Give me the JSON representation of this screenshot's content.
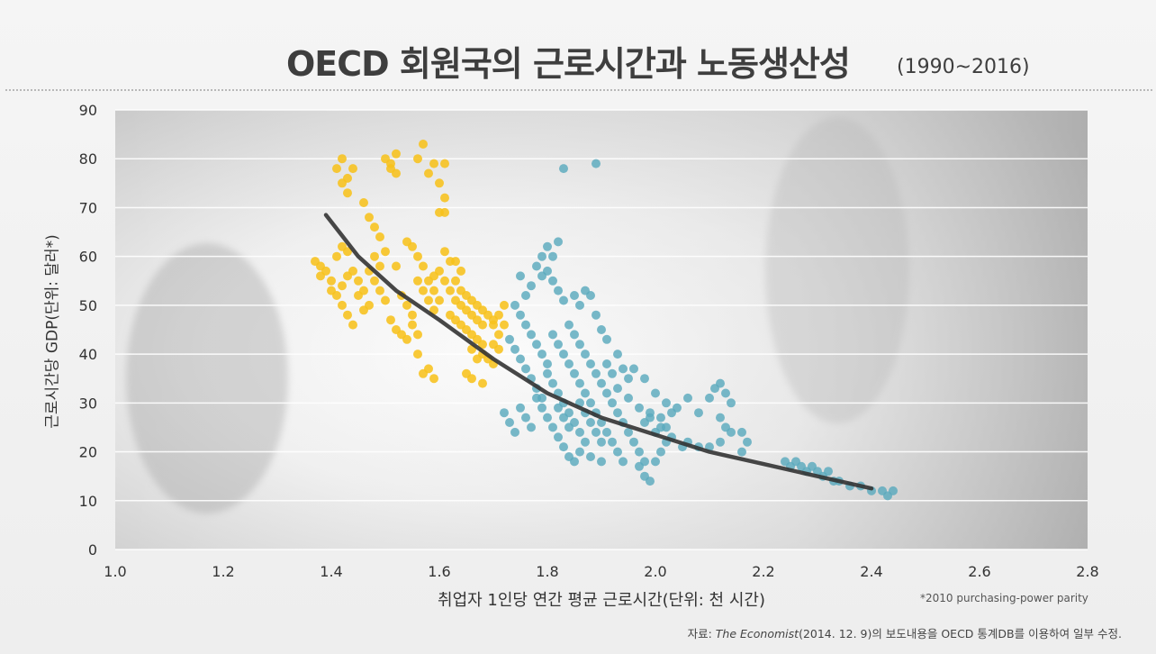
{
  "title": "OECD 회원국의 근로시간과 노동생산성",
  "subtitle": "(1990~2016)",
  "note": "*2010 purchasing-power parity",
  "source": {
    "prefix": "자료: ",
    "publication": "The Economist",
    "suffix": "(2014. 12. 9)의 보도내용을 OECD 통계DB를 이용하여 일부 수정."
  },
  "colors": {
    "low_hours_points": "#f7c21c",
    "high_hours_points": "#5aa9bd",
    "trend_line": "#333333",
    "grid": "#ffffff"
  },
  "chart_data": {
    "type": "scatter",
    "title": "OECD 회원국의 근로시간과 노동생산성",
    "subtitle": "(1990~2016)",
    "xlabel": "취업자 1인당 연간 평균 근로시간(단위: 천 시간)",
    "ylabel": "근로시간당 GDP(단위: 달러*)",
    "xlim": [
      1.0,
      2.8
    ],
    "ylim": [
      0,
      90
    ],
    "xticks": [
      "1.0",
      "1.2",
      "1.4",
      "1.6",
      "1.8",
      "2.0",
      "2.2",
      "2.4",
      "2.6",
      "2.8"
    ],
    "yticks": [
      "0",
      "10",
      "20",
      "30",
      "40",
      "50",
      "60",
      "70",
      "80",
      "90"
    ],
    "grid": true,
    "legend": "none",
    "series": [
      {
        "values": [
          [
            1.41,
            78
          ],
          [
            1.42,
            80
          ],
          [
            1.43,
            76
          ],
          [
            1.44,
            78
          ],
          [
            1.42,
            75
          ],
          [
            1.43,
            73
          ],
          [
            1.5,
            80
          ],
          [
            1.51,
            78
          ],
          [
            1.52,
            81
          ],
          [
            1.52,
            77
          ],
          [
            1.51,
            79
          ],
          [
            1.57,
            83
          ],
          [
            1.59,
            79
          ],
          [
            1.61,
            79
          ],
          [
            1.6,
            75
          ],
          [
            1.61,
            72
          ],
          [
            1.6,
            69
          ],
          [
            1.61,
            69
          ],
          [
            1.58,
            77
          ],
          [
            1.56,
            80
          ],
          [
            1.46,
            71
          ],
          [
            1.47,
            68
          ],
          [
            1.48,
            66
          ],
          [
            1.49,
            64
          ],
          [
            1.5,
            61
          ],
          [
            1.52,
            58
          ],
          [
            1.37,
            59
          ],
          [
            1.38,
            58
          ],
          [
            1.39,
            57
          ],
          [
            1.38,
            56
          ],
          [
            1.4,
            55
          ],
          [
            1.41,
            60
          ],
          [
            1.42,
            62
          ],
          [
            1.43,
            61
          ],
          [
            1.4,
            53
          ],
          [
            1.41,
            52
          ],
          [
            1.42,
            50
          ],
          [
            1.43,
            48
          ],
          [
            1.44,
            46
          ],
          [
            1.45,
            52
          ],
          [
            1.46,
            49
          ],
          [
            1.47,
            57
          ],
          [
            1.48,
            55
          ],
          [
            1.49,
            53
          ],
          [
            1.5,
            51
          ],
          [
            1.51,
            47
          ],
          [
            1.52,
            45
          ],
          [
            1.53,
            44
          ],
          [
            1.44,
            57
          ],
          [
            1.45,
            55
          ],
          [
            1.46,
            53
          ],
          [
            1.47,
            50
          ],
          [
            1.48,
            60
          ],
          [
            1.49,
            58
          ],
          [
            1.43,
            56
          ],
          [
            1.42,
            54
          ],
          [
            1.54,
            63
          ],
          [
            1.55,
            62
          ],
          [
            1.56,
            60
          ],
          [
            1.57,
            58
          ],
          [
            1.58,
            55
          ],
          [
            1.59,
            53
          ],
          [
            1.6,
            51
          ],
          [
            1.61,
            55
          ],
          [
            1.62,
            53
          ],
          [
            1.63,
            51
          ],
          [
            1.64,
            50
          ],
          [
            1.65,
            49
          ],
          [
            1.66,
            48
          ],
          [
            1.67,
            47
          ],
          [
            1.68,
            46
          ],
          [
            1.63,
            55
          ],
          [
            1.64,
            53
          ],
          [
            1.65,
            52
          ],
          [
            1.66,
            51
          ],
          [
            1.67,
            50
          ],
          [
            1.68,
            49
          ],
          [
            1.69,
            48
          ],
          [
            1.7,
            47
          ],
          [
            1.62,
            48
          ],
          [
            1.63,
            47
          ],
          [
            1.64,
            46
          ],
          [
            1.65,
            45
          ],
          [
            1.66,
            44
          ],
          [
            1.67,
            43
          ],
          [
            1.68,
            42
          ],
          [
            1.55,
            46
          ],
          [
            1.56,
            44
          ],
          [
            1.54,
            43
          ],
          [
            1.56,
            40
          ],
          [
            1.57,
            36
          ],
          [
            1.58,
            37
          ],
          [
            1.59,
            35
          ],
          [
            1.53,
            52
          ],
          [
            1.54,
            50
          ],
          [
            1.55,
            48
          ],
          [
            1.56,
            55
          ],
          [
            1.57,
            53
          ],
          [
            1.58,
            51
          ],
          [
            1.59,
            49
          ],
          [
            1.68,
            40
          ],
          [
            1.69,
            39
          ],
          [
            1.7,
            38
          ],
          [
            1.66,
            41
          ],
          [
            1.67,
            39
          ],
          [
            1.65,
            36
          ],
          [
            1.66,
            35
          ],
          [
            1.68,
            34
          ],
          [
            1.7,
            42
          ],
          [
            1.71,
            44
          ],
          [
            1.7,
            46
          ],
          [
            1.71,
            48
          ],
          [
            1.72,
            50
          ],
          [
            1.72,
            46
          ],
          [
            1.71,
            41
          ],
          [
            1.64,
            57
          ],
          [
            1.62,
            59
          ],
          [
            1.61,
            61
          ],
          [
            1.63,
            59
          ],
          [
            1.6,
            57
          ],
          [
            1.59,
            56
          ]
        ]
      },
      {
        "values": [
          [
            1.83,
            78
          ],
          [
            1.89,
            79
          ],
          [
            1.8,
            62
          ],
          [
            1.81,
            60
          ],
          [
            1.82,
            63
          ],
          [
            1.79,
            60
          ],
          [
            1.8,
            57
          ],
          [
            1.81,
            55
          ],
          [
            1.82,
            53
          ],
          [
            1.83,
            51
          ],
          [
            1.85,
            52
          ],
          [
            1.86,
            50
          ],
          [
            1.87,
            53
          ],
          [
            1.88,
            52
          ],
          [
            1.89,
            48
          ],
          [
            1.9,
            45
          ],
          [
            1.91,
            43
          ],
          [
            1.74,
            50
          ],
          [
            1.75,
            48
          ],
          [
            1.76,
            46
          ],
          [
            1.77,
            44
          ],
          [
            1.78,
            42
          ],
          [
            1.79,
            40
          ],
          [
            1.8,
            38
          ],
          [
            1.73,
            43
          ],
          [
            1.74,
            41
          ],
          [
            1.75,
            39
          ],
          [
            1.76,
            37
          ],
          [
            1.77,
            35
          ],
          [
            1.78,
            33
          ],
          [
            1.79,
            31
          ],
          [
            1.72,
            28
          ],
          [
            1.73,
            26
          ],
          [
            1.74,
            24
          ],
          [
            1.75,
            29
          ],
          [
            1.76,
            27
          ],
          [
            1.77,
            25
          ],
          [
            1.78,
            31
          ],
          [
            1.79,
            29
          ],
          [
            1.8,
            36
          ],
          [
            1.81,
            34
          ],
          [
            1.82,
            32
          ],
          [
            1.83,
            30
          ],
          [
            1.84,
            28
          ],
          [
            1.85,
            26
          ],
          [
            1.86,
            24
          ],
          [
            1.87,
            22
          ],
          [
            1.81,
            44
          ],
          [
            1.82,
            42
          ],
          [
            1.83,
            40
          ],
          [
            1.84,
            38
          ],
          [
            1.85,
            36
          ],
          [
            1.86,
            34
          ],
          [
            1.87,
            32
          ],
          [
            1.88,
            30
          ],
          [
            1.89,
            28
          ],
          [
            1.9,
            26
          ],
          [
            1.91,
            24
          ],
          [
            1.92,
            22
          ],
          [
            1.93,
            20
          ],
          [
            1.94,
            18
          ],
          [
            1.84,
            46
          ],
          [
            1.85,
            44
          ],
          [
            1.86,
            42
          ],
          [
            1.87,
            40
          ],
          [
            1.88,
            38
          ],
          [
            1.89,
            36
          ],
          [
            1.9,
            34
          ],
          [
            1.91,
            32
          ],
          [
            1.92,
            30
          ],
          [
            1.93,
            28
          ],
          [
            1.94,
            26
          ],
          [
            1.95,
            24
          ],
          [
            1.96,
            22
          ],
          [
            1.97,
            20
          ],
          [
            1.98,
            18
          ],
          [
            1.82,
            23
          ],
          [
            1.83,
            21
          ],
          [
            1.84,
            19
          ],
          [
            1.85,
            18
          ],
          [
            1.86,
            20
          ],
          [
            1.88,
            19
          ],
          [
            1.9,
            18
          ],
          [
            1.93,
            33
          ],
          [
            1.95,
            31
          ],
          [
            1.97,
            29
          ],
          [
            1.99,
            27
          ],
          [
            2.01,
            25
          ],
          [
            2.03,
            23
          ],
          [
            2.05,
            21
          ],
          [
            1.96,
            37
          ],
          [
            1.98,
            35
          ],
          [
            2.0,
            32
          ],
          [
            2.02,
            30
          ],
          [
            2.04,
            29
          ],
          [
            2.06,
            31
          ],
          [
            2.08,
            28
          ],
          [
            1.97,
            17
          ],
          [
            1.98,
            15
          ],
          [
            1.99,
            14
          ],
          [
            2.0,
            18
          ],
          [
            2.01,
            20
          ],
          [
            2.02,
            22
          ],
          [
            2.1,
            31
          ],
          [
            2.11,
            33
          ],
          [
            2.12,
            34
          ],
          [
            2.13,
            32
          ],
          [
            2.14,
            30
          ],
          [
            2.12,
            27
          ],
          [
            2.13,
            25
          ],
          [
            2.14,
            24
          ],
          [
            2.16,
            24
          ],
          [
            2.17,
            22
          ],
          [
            2.16,
            20
          ],
          [
            2.12,
            22
          ],
          [
            2.1,
            21
          ],
          [
            2.08,
            21
          ],
          [
            2.06,
            22
          ],
          [
            2.24,
            18
          ],
          [
            2.25,
            17
          ],
          [
            2.26,
            18
          ],
          [
            2.27,
            17
          ],
          [
            2.28,
            16
          ],
          [
            2.29,
            17
          ],
          [
            2.3,
            16
          ],
          [
            2.31,
            15
          ],
          [
            2.32,
            16
          ],
          [
            2.33,
            14
          ],
          [
            2.34,
            14
          ],
          [
            2.36,
            13
          ],
          [
            2.38,
            13
          ],
          [
            2.42,
            12
          ],
          [
            2.43,
            11
          ],
          [
            2.44,
            12
          ],
          [
            2.4,
            12
          ],
          [
            1.76,
            52
          ],
          [
            1.77,
            54
          ],
          [
            1.75,
            56
          ],
          [
            1.78,
            58
          ],
          [
            1.79,
            56
          ],
          [
            1.91,
            38
          ],
          [
            1.92,
            36
          ],
          [
            1.93,
            40
          ],
          [
            1.94,
            37
          ],
          [
            1.95,
            35
          ],
          [
            1.86,
            30
          ],
          [
            1.87,
            28
          ],
          [
            1.88,
            26
          ],
          [
            1.89,
            24
          ],
          [
            1.9,
            22
          ],
          [
            1.98,
            26
          ],
          [
            1.99,
            28
          ],
          [
            2.0,
            24
          ],
          [
            2.01,
            27
          ],
          [
            2.02,
            25
          ],
          [
            2.03,
            28
          ],
          [
            1.8,
            27
          ],
          [
            1.81,
            25
          ],
          [
            1.82,
            29
          ],
          [
            1.83,
            27
          ],
          [
            1.84,
            25
          ]
        ]
      }
    ],
    "trend": {
      "x": [
        1.39,
        1.45,
        1.52,
        1.6,
        1.7,
        1.8,
        1.9,
        2.0,
        2.1,
        2.2,
        2.3,
        2.4
      ],
      "y": [
        68.5,
        60,
        53,
        47,
        39,
        32,
        27,
        23.5,
        20,
        17.5,
        15,
        12.5
      ]
    }
  }
}
